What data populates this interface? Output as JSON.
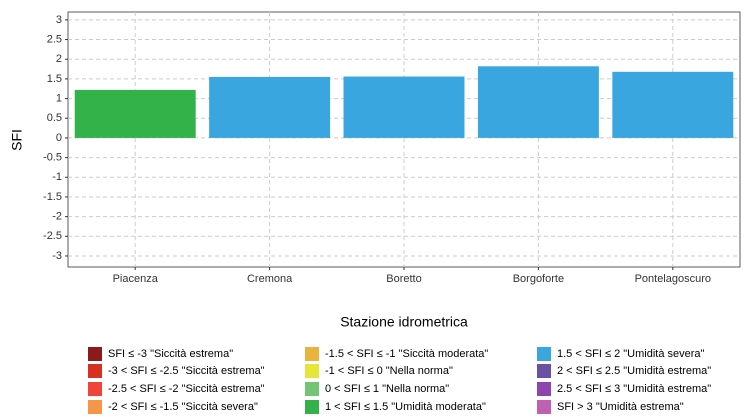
{
  "chart_data": {
    "type": "bar",
    "y_label": "SFI",
    "x_label": "Stazione idrometrica",
    "categories": [
      "Piacenza",
      "Cremona",
      "Boretto",
      "Borgoforte",
      "Pontelagoscuro"
    ],
    "values": [
      1.22,
      1.55,
      1.56,
      1.82,
      1.68
    ],
    "colors": [
      "#34b24a",
      "#3aa6df",
      "#3aa6df",
      "#3aa6df",
      "#3aa6df"
    ],
    "ylim": [
      -3.28,
      3.2
    ],
    "yticks": [
      -3,
      -2.5,
      -2,
      -1.5,
      -1,
      -0.5,
      0,
      0.5,
      1,
      1.5,
      2,
      2.5,
      3
    ],
    "grid": true,
    "legend": [
      {
        "label": "SFI ≤ -3 \"Siccità estrema\"",
        "color": "#8b1a1a"
      },
      {
        "label": "-3 < SFI ≤ -2.5 \"Siccità estrema\"",
        "color": "#d7301f"
      },
      {
        "label": "-2.5 < SFI ≤ -2 \"Siccità estrema\"",
        "color": "#f0443a"
      },
      {
        "label": "-2 < SFI ≤ -1.5 \"Siccità severa\"",
        "color": "#f79646"
      },
      {
        "label": "-1.5 < SFI ≤ -1 \"Siccità moderata\"",
        "color": "#e8b43c"
      },
      {
        "label": "-1 < SFI ≤ 0 \"Nella norma\"",
        "color": "#e5e53a"
      },
      {
        "label": "0 < SFI ≤ 1 \"Nella norma\"",
        "color": "#74c476"
      },
      {
        "label": "1 < SFI ≤ 1.5 \"Umidità moderata\"",
        "color": "#34b24a"
      },
      {
        "label": "1.5 < SFI ≤ 2 \"Umidità severa\"",
        "color": "#3aa6df"
      },
      {
        "label": "2 < SFI ≤ 2.5 \"Umidità estrema\"",
        "color": "#6a51a3"
      },
      {
        "label": "2.5 < SFI ≤ 3 \"Umidità estrema\"",
        "color": "#8e44ad"
      },
      {
        "label": "SFI > 3 \"Umidità estrema\"",
        "color": "#c060b0"
      }
    ]
  }
}
